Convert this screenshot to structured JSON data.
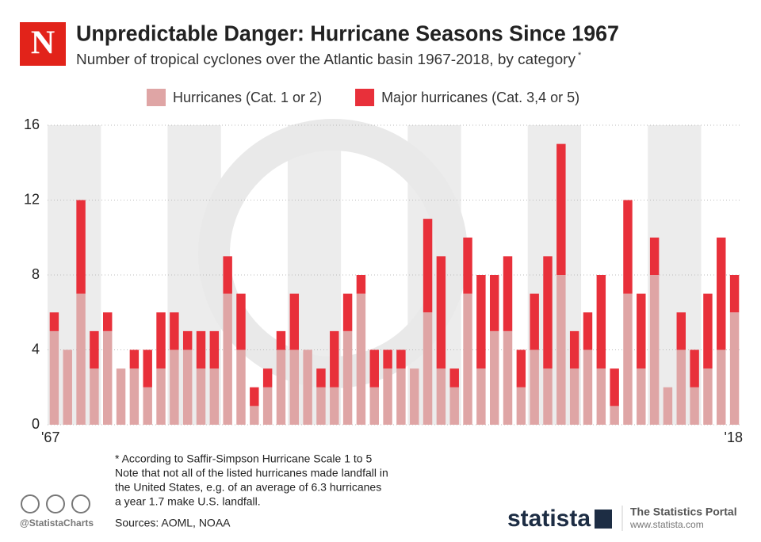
{
  "chart_data": {
    "type": "stacked-bar",
    "title": "Unpredictable Danger: Hurricane Seasons Since 1967",
    "subtitle": "Number of tropical cyclones over the Atlantic basin 1967-2018, by category",
    "subtitle_mark": "*",
    "categories": [
      "'67",
      null,
      null,
      null,
      null,
      null,
      null,
      null,
      null,
      null,
      null,
      null,
      null,
      null,
      null,
      null,
      null,
      null,
      null,
      null,
      null,
      null,
      null,
      null,
      null,
      null,
      null,
      null,
      null,
      null,
      null,
      null,
      null,
      null,
      null,
      null,
      null,
      null,
      null,
      null,
      null,
      null,
      null,
      null,
      null,
      null,
      null,
      null,
      null,
      null,
      null,
      "'18"
    ],
    "series": [
      {
        "name": "Hurricanes (Cat. 1 or 2)",
        "color": "#dfa5a5",
        "values": [
          5,
          4,
          7,
          3,
          5,
          3,
          3,
          2,
          3,
          4,
          4,
          3,
          3,
          7,
          4,
          1,
          2,
          4,
          4,
          4,
          2,
          2,
          5,
          7,
          2,
          3,
          3,
          3,
          6,
          3,
          2,
          7,
          3,
          5,
          5,
          2,
          4,
          3,
          8,
          3,
          4,
          3,
          1,
          7,
          3,
          8,
          2,
          4,
          2,
          3,
          4,
          6
        ]
      },
      {
        "name": "Major hurricanes (Cat. 3,4 or 5)",
        "color": "#e8303a",
        "values": [
          1,
          0,
          5,
          2,
          1,
          0,
          1,
          2,
          3,
          2,
          1,
          2,
          2,
          2,
          3,
          1,
          1,
          1,
          3,
          0,
          1,
          3,
          2,
          1,
          2,
          1,
          1,
          0,
          5,
          6,
          1,
          3,
          5,
          3,
          4,
          2,
          3,
          6,
          7,
          2,
          2,
          5,
          2,
          5,
          4,
          2,
          0,
          2,
          2,
          4,
          6,
          2
        ]
      }
    ],
    "ylim": [
      0,
      16
    ],
    "yticks": [
      0,
      4,
      8,
      12,
      16
    ],
    "grid": true,
    "notes": [
      "* According to Saffir-Simpson Hurricane Scale 1 to 5",
      "Note that not all of the listed hurricanes made landfall in",
      "the United States, e.g. of an average of 6.3 hurricanes",
      "a year 1.7 make U.S. landfall."
    ],
    "source": "Sources: AOML, NOAA"
  },
  "branding": {
    "logo": "N",
    "handle": "@StatistaCharts",
    "brand": "statista",
    "portal": "The Statistics Portal",
    "url": "www.statista.com"
  }
}
